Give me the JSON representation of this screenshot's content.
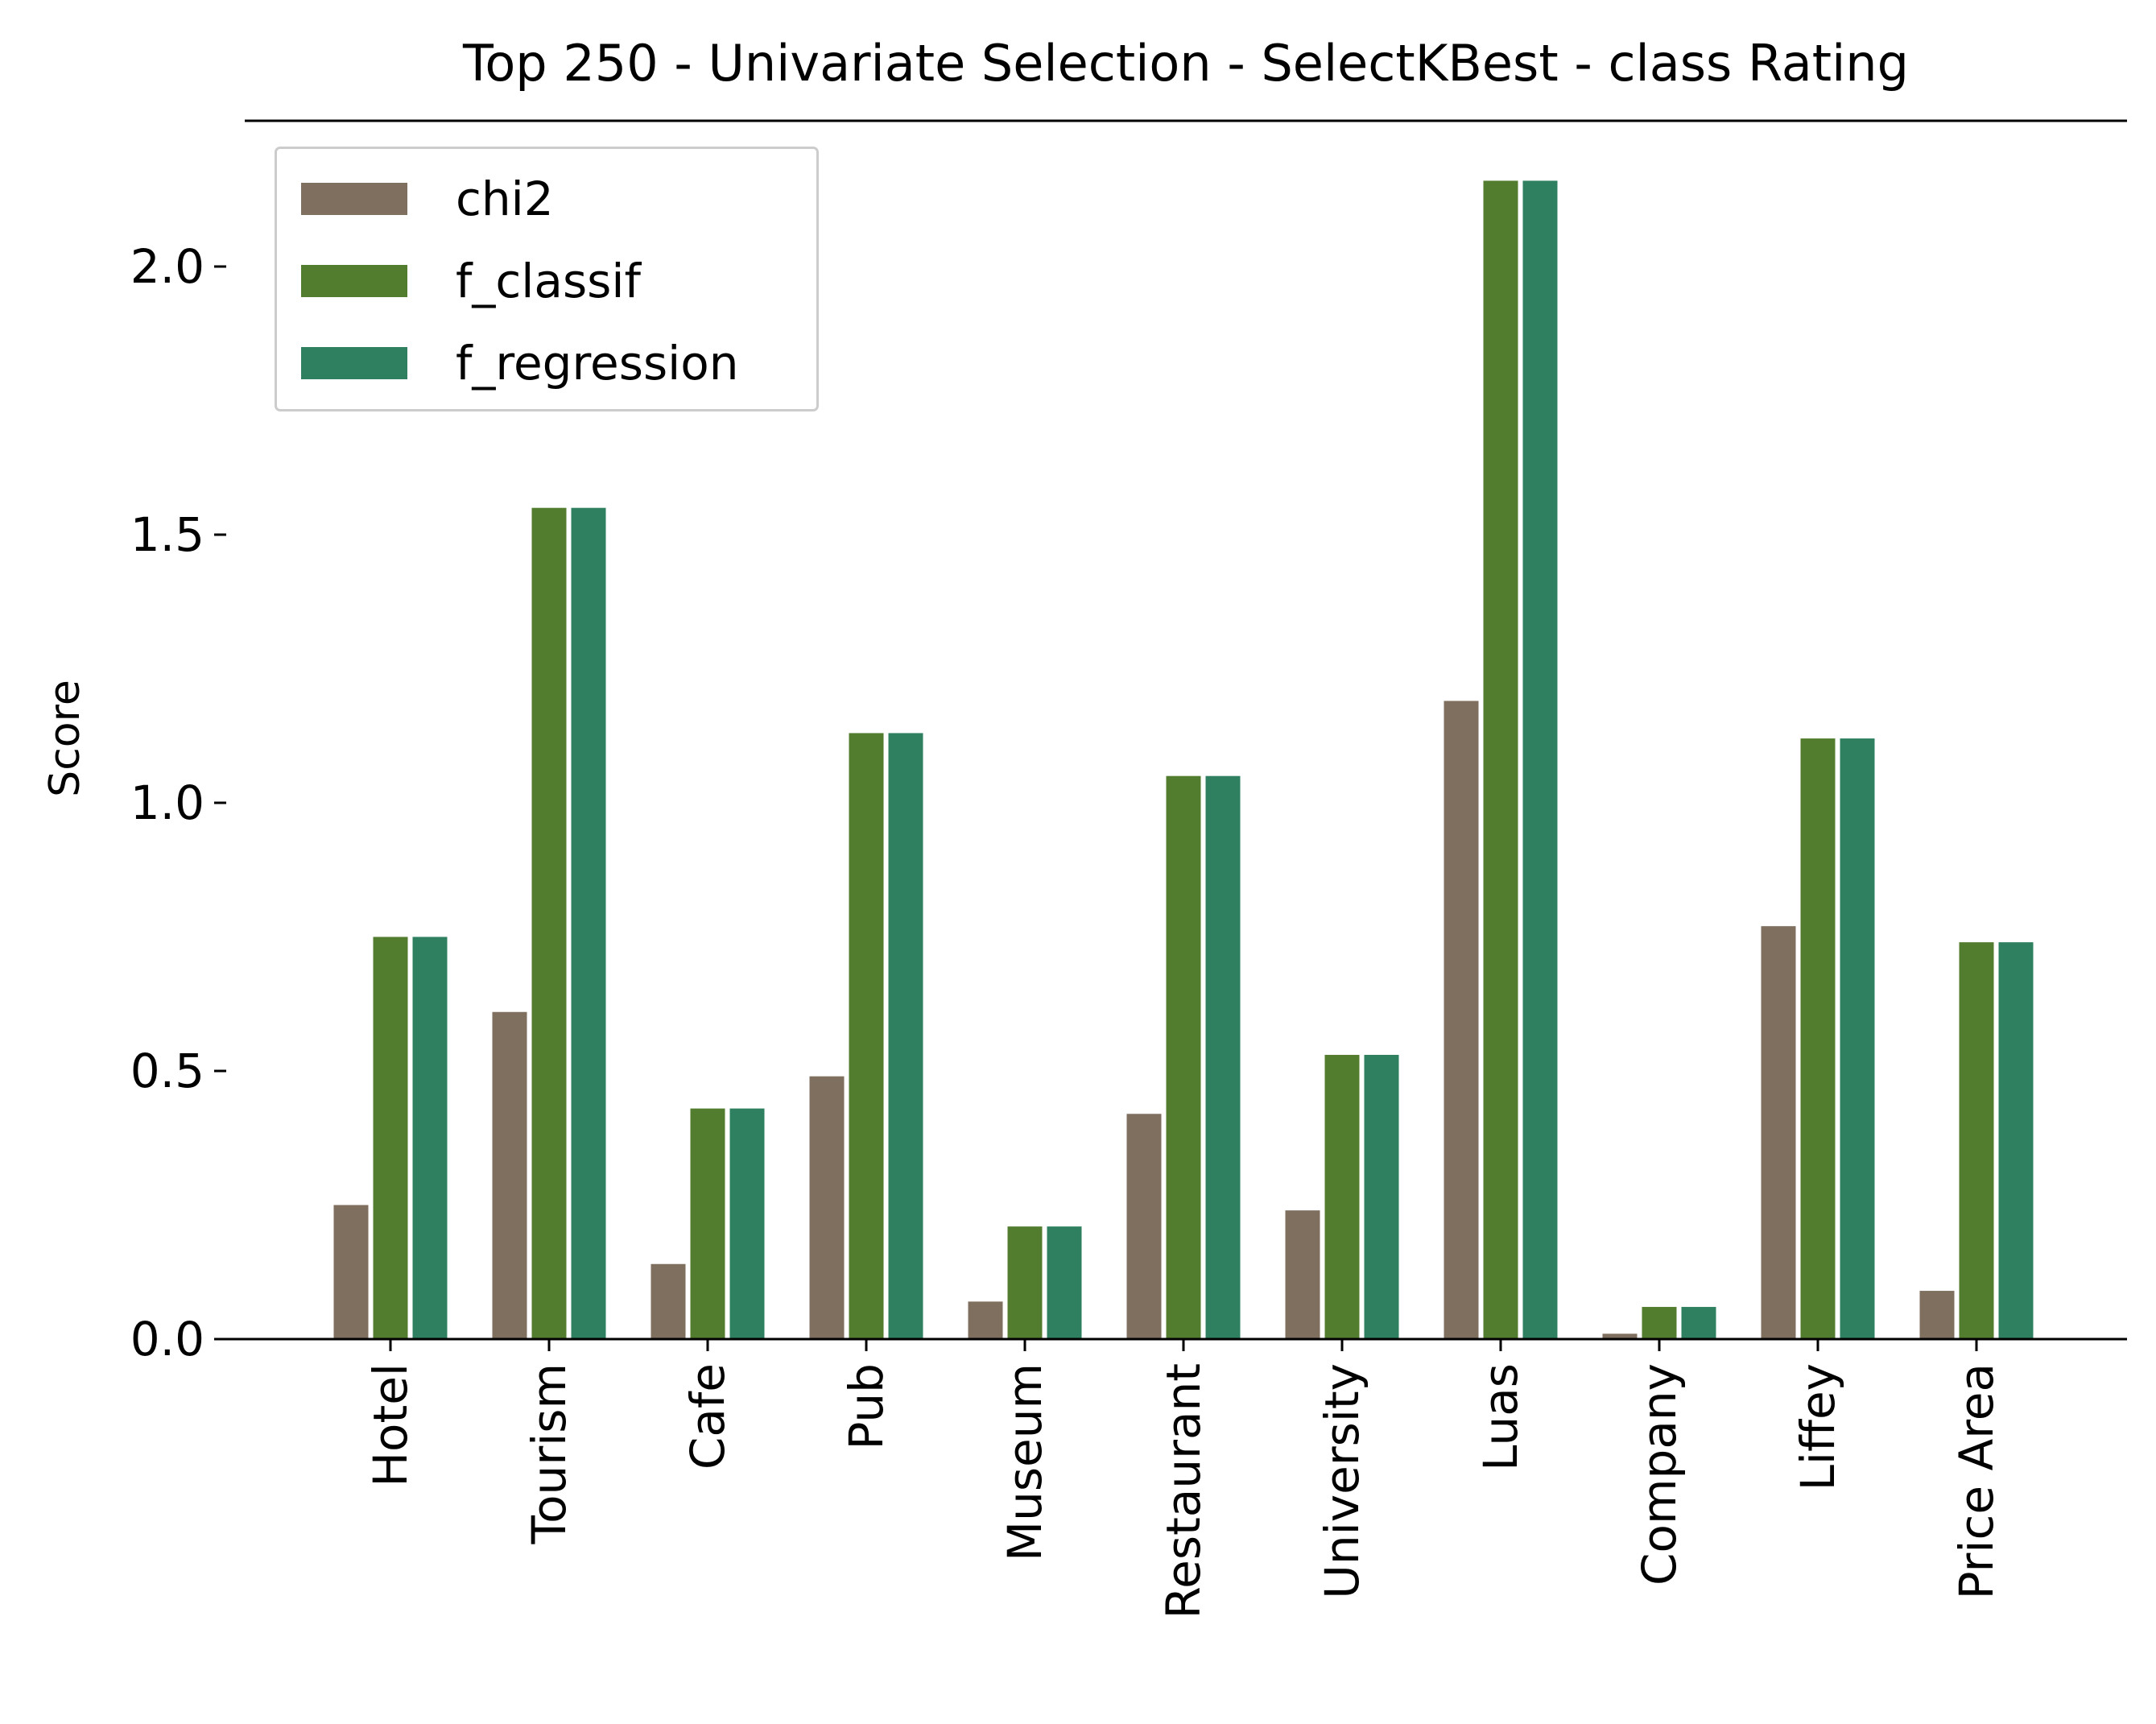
{
  "chart_data": {
    "type": "bar",
    "title": "Top 250 - Univariate Selection - SelectKBest - class Rating",
    "xlabel": "",
    "ylabel": "Score",
    "ylim": [
      0,
      2.2
    ],
    "yticks": [
      "0.0",
      "0.5",
      "1.0",
      "1.5",
      "2.0"
    ],
    "categories": [
      "Hotel",
      "Tourism",
      "Cafe",
      "Pub",
      "Museum",
      "Restaurant",
      "University",
      "Luas",
      "Company",
      "Liffey",
      "Price Area"
    ],
    "series": [
      {
        "name": "chi2",
        "color": "#7f6f5f",
        "values": [
          0.25,
          0.61,
          0.14,
          0.49,
          0.07,
          0.42,
          0.24,
          1.19,
          0.01,
          0.77,
          0.09
        ]
      },
      {
        "name": "f_classif",
        "color": "#537d2e",
        "values": [
          0.75,
          1.55,
          0.43,
          1.13,
          0.21,
          1.05,
          0.53,
          2.16,
          0.06,
          1.12,
          0.74
        ]
      },
      {
        "name": "f_regression",
        "color": "#2e8060",
        "values": [
          0.75,
          1.55,
          0.43,
          1.13,
          0.21,
          1.05,
          0.53,
          2.16,
          0.06,
          1.12,
          0.74
        ]
      }
    ],
    "legend_position": "top-left",
    "grid": false
  }
}
